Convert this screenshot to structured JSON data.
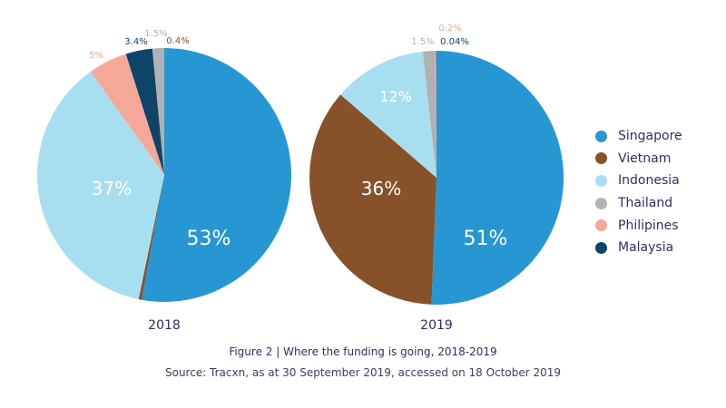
{
  "chart_data": {
    "type": "pie",
    "legend_position": "right",
    "series_colors": {
      "Singapore": "#2697d3",
      "Vietnam": "#87522a",
      "Indonesia": "#a8dff0",
      "Thailand": "#b1b1b3",
      "Philipines": "#f6a898",
      "Malaysia": "#0e4467"
    },
    "legend": [
      "Singapore",
      "Vietnam",
      "Indonesia",
      "Thailand",
      "Philipines",
      "Malaysia"
    ],
    "charts": [
      {
        "label": "2018",
        "slices": [
          {
            "name": "Singapore",
            "value": 53,
            "text": "53%"
          },
          {
            "name": "Vietnam",
            "value": 0.4,
            "text": "0.4%"
          },
          {
            "name": "Indonesia",
            "value": 37,
            "text": "37%"
          },
          {
            "name": "Philipines",
            "value": 5,
            "text": "5%"
          },
          {
            "name": "Malaysia",
            "value": 3.4,
            "text": "3.4%"
          },
          {
            "name": "Thailand",
            "value": 1.5,
            "text": "1.5%"
          }
        ]
      },
      {
        "label": "2019",
        "slices": [
          {
            "name": "Singapore",
            "value": 51,
            "text": "51%"
          },
          {
            "name": "Vietnam",
            "value": 36,
            "text": "36%"
          },
          {
            "name": "Indonesia",
            "value": 12,
            "text": "12%"
          },
          {
            "name": "Thailand",
            "value": 1.5,
            "text": "1.5%"
          },
          {
            "name": "Philipines",
            "value": 0.2,
            "text": "0.2%"
          },
          {
            "name": "Malaysia",
            "value": 0.04,
            "text": "0.04%"
          }
        ]
      }
    ]
  },
  "caption": "Figure 2 | Where the funding is going, 2018-2019",
  "source": "Source: Tracxn, as at 30 September 2019, accessed on 18 October 2019"
}
